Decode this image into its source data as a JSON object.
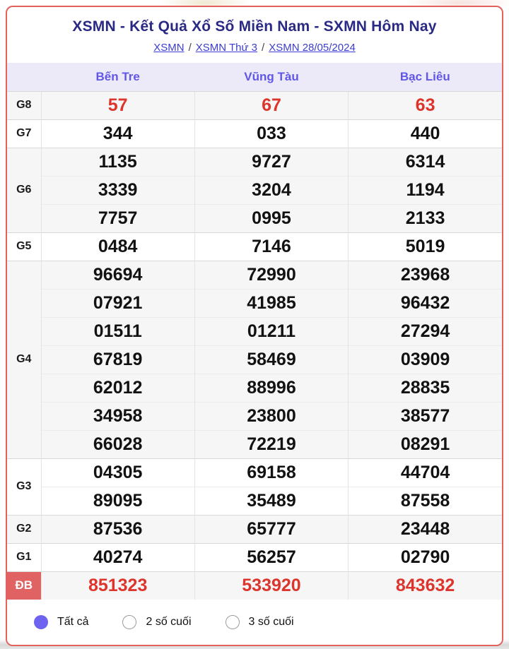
{
  "header": {
    "title": "XSMN - Kết Quả Xổ Số Miền Nam - SXMN Hôm Nay",
    "breadcrumb_separator": "/",
    "breadcrumb": [
      {
        "label": "XSMN"
      },
      {
        "label": "XSMN Thứ 3"
      },
      {
        "label": "XSMN 28/05/2024"
      }
    ]
  },
  "table": {
    "columns": [
      "Bến Tre",
      "Vũng Tàu",
      "Bạc Liêu"
    ],
    "groups": [
      {
        "label": "G8",
        "highlight": "red",
        "rows": [
          [
            "57",
            "67",
            "63"
          ]
        ]
      },
      {
        "label": "G7",
        "rows": [
          [
            "344",
            "033",
            "440"
          ]
        ]
      },
      {
        "label": "G6",
        "rows": [
          [
            "1135",
            "9727",
            "6314"
          ],
          [
            "3339",
            "3204",
            "1194"
          ],
          [
            "7757",
            "0995",
            "2133"
          ]
        ]
      },
      {
        "label": "G5",
        "rows": [
          [
            "0484",
            "7146",
            "5019"
          ]
        ]
      },
      {
        "label": "G4",
        "rows": [
          [
            "96694",
            "72990",
            "23968"
          ],
          [
            "07921",
            "41985",
            "96432"
          ],
          [
            "01511",
            "01211",
            "27294"
          ],
          [
            "67819",
            "58469",
            "03909"
          ],
          [
            "62012",
            "88996",
            "28835"
          ],
          [
            "34958",
            "23800",
            "38577"
          ],
          [
            "66028",
            "72219",
            "08291"
          ]
        ]
      },
      {
        "label": "G3",
        "rows": [
          [
            "04305",
            "69158",
            "44704"
          ],
          [
            "89095",
            "35489",
            "87558"
          ]
        ]
      },
      {
        "label": "G2",
        "rows": [
          [
            "87536",
            "65777",
            "23448"
          ]
        ]
      },
      {
        "label": "G1",
        "rows": [
          [
            "40274",
            "56257",
            "02790"
          ]
        ]
      },
      {
        "label": "ĐB",
        "highlight": "red",
        "rows": [
          [
            "851323",
            "533920",
            "843632"
          ]
        ]
      }
    ]
  },
  "footer": {
    "options": [
      {
        "label": "Tất cả",
        "selected": true
      },
      {
        "label": "2 số cuối",
        "selected": false
      },
      {
        "label": "3 số cuối",
        "selected": false
      }
    ]
  },
  "colors": {
    "card_border": "#e2625e",
    "title_text": "#2a2a85",
    "link_text": "#3c3ccd",
    "column_header_text": "#6157e6",
    "column_header_bg": "#eceaf9",
    "band_gray": "#f6f6f6",
    "highlight_red": "#dd342c",
    "db_label_bg": "#e06262",
    "radio_selected": "#6e63ef"
  }
}
